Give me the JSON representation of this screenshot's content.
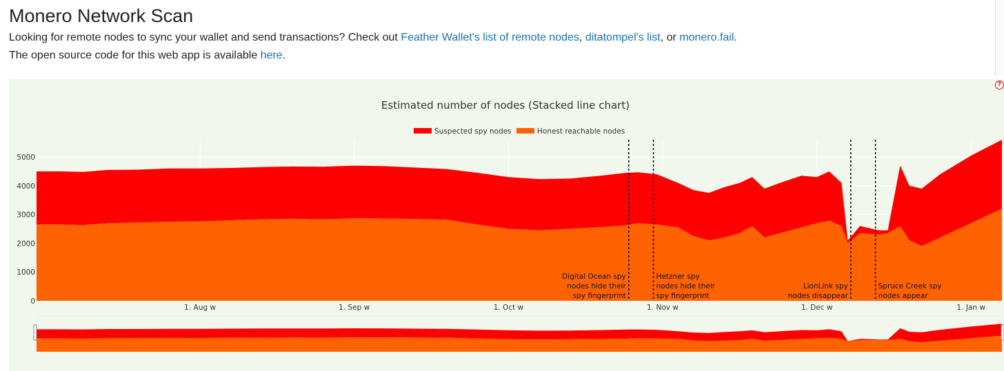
{
  "header": {
    "title": "Monero Network Scan",
    "intro_prefix": "Looking for remote nodes to sync your wallet and send transactions? Check out",
    "link1": "Feather Wallet's list of remote nodes",
    "sep1": ",",
    "link2": "ditatompel's list",
    "sep2": ", or",
    "link3": "monero.fail",
    "end1": ".",
    "source_prefix": "The open source code for this web app is available",
    "source_link": "here",
    "end2": "."
  },
  "colors": {
    "spy": "#ff0000",
    "honest": "#ff6200",
    "panel": "#f1f7ec",
    "link": "#1a6fb5"
  },
  "chart_data": {
    "type": "area",
    "stacked": true,
    "title": "Estimated number of nodes (Stacked line chart)",
    "legend": [
      "Suspected spy nodes",
      "Honest reachable nodes"
    ],
    "legend_position": "top-center",
    "x_tick_labels": [
      "1. Aug w",
      "1. Sep w",
      "1. Oct w",
      "1. Nov w",
      "1. Dec w",
      "1. Jan w"
    ],
    "y_tick_labels": [
      "0",
      "1000",
      "2000",
      "3000",
      "4000",
      "5000"
    ],
    "ylim": [
      0,
      5600
    ],
    "xlim_weeks": [
      -5.3,
      26
    ],
    "tick_weeks": [
      0,
      5,
      10,
      15,
      20,
      25
    ],
    "series": [
      {
        "name": "Honest reachable nodes",
        "points": [
          [
            -5.3,
            2650
          ],
          [
            -4.5,
            2650
          ],
          [
            -3.8,
            2630
          ],
          [
            -3.0,
            2700
          ],
          [
            -2.0,
            2720
          ],
          [
            -1.0,
            2750
          ],
          [
            0,
            2760
          ],
          [
            1,
            2800
          ],
          [
            2,
            2830
          ],
          [
            3,
            2850
          ],
          [
            4,
            2830
          ],
          [
            5,
            2870
          ],
          [
            6,
            2860
          ],
          [
            7,
            2840
          ],
          [
            8,
            2820
          ],
          [
            9,
            2650
          ],
          [
            10,
            2500
          ],
          [
            11,
            2450
          ],
          [
            12,
            2500
          ],
          [
            13,
            2560
          ],
          [
            13.8,
            2620
          ],
          [
            14.2,
            2700
          ],
          [
            14.8,
            2650
          ],
          [
            15.5,
            2550
          ],
          [
            16.0,
            2250
          ],
          [
            16.5,
            2100
          ],
          [
            17.0,
            2200
          ],
          [
            17.5,
            2350
          ],
          [
            17.9,
            2600
          ],
          [
            18.3,
            2200
          ],
          [
            18.8,
            2350
          ],
          [
            19.5,
            2550
          ],
          [
            20.0,
            2700
          ],
          [
            20.4,
            2780
          ],
          [
            20.8,
            2600
          ],
          [
            21.0,
            2000
          ],
          [
            21.4,
            2350
          ],
          [
            22.0,
            2300
          ],
          [
            22.3,
            2350
          ],
          [
            22.7,
            2600
          ],
          [
            23.0,
            2100
          ],
          [
            23.4,
            1900
          ],
          [
            24.0,
            2200
          ],
          [
            25.0,
            2700
          ],
          [
            26.0,
            3200
          ]
        ]
      },
      {
        "name": "Suspected spy nodes",
        "points": [
          [
            -5.3,
            1850
          ],
          [
            -4.5,
            1850
          ],
          [
            -3.8,
            1850
          ],
          [
            -3.0,
            1850
          ],
          [
            -2.0,
            1840
          ],
          [
            -1.0,
            1850
          ],
          [
            0,
            1840
          ],
          [
            1,
            1820
          ],
          [
            2,
            1820
          ],
          [
            3,
            1820
          ],
          [
            4,
            1830
          ],
          [
            5,
            1830
          ],
          [
            6,
            1820
          ],
          [
            7,
            1790
          ],
          [
            8,
            1760
          ],
          [
            9,
            1800
          ],
          [
            10,
            1800
          ],
          [
            11,
            1780
          ],
          [
            12,
            1750
          ],
          [
            13,
            1790
          ],
          [
            13.8,
            1830
          ],
          [
            14.2,
            1770
          ],
          [
            14.8,
            1750
          ],
          [
            15.5,
            1550
          ],
          [
            16.0,
            1600
          ],
          [
            16.5,
            1650
          ],
          [
            17.0,
            1750
          ],
          [
            17.5,
            1750
          ],
          [
            17.9,
            1700
          ],
          [
            18.3,
            1700
          ],
          [
            18.8,
            1750
          ],
          [
            19.5,
            1800
          ],
          [
            20.0,
            1600
          ],
          [
            20.4,
            1720
          ],
          [
            20.8,
            1500
          ],
          [
            21.0,
            100
          ],
          [
            21.4,
            250
          ],
          [
            22.0,
            150
          ],
          [
            22.3,
            100
          ],
          [
            22.7,
            2100
          ],
          [
            23.0,
            1900
          ],
          [
            23.4,
            2000
          ],
          [
            24.0,
            2200
          ],
          [
            25.0,
            2350
          ],
          [
            26.0,
            2400
          ]
        ]
      }
    ],
    "annotations": [
      {
        "week": 13.9,
        "lines": [
          "Digital Ocean spy",
          "nodes hide their",
          "spy fingerprint"
        ],
        "side": "left"
      },
      {
        "week": 14.7,
        "lines": [
          "Hetzner spy",
          "nodes hide their",
          "spy fingerprint"
        ],
        "side": "right"
      },
      {
        "week": 21.1,
        "lines": [
          "LionLink spy",
          "nodes disappear"
        ],
        "side": "left"
      },
      {
        "week": 21.9,
        "lines": [
          "Spruce Creek spy",
          "nodes appear"
        ],
        "side": "right"
      }
    ],
    "range_slider": true
  }
}
